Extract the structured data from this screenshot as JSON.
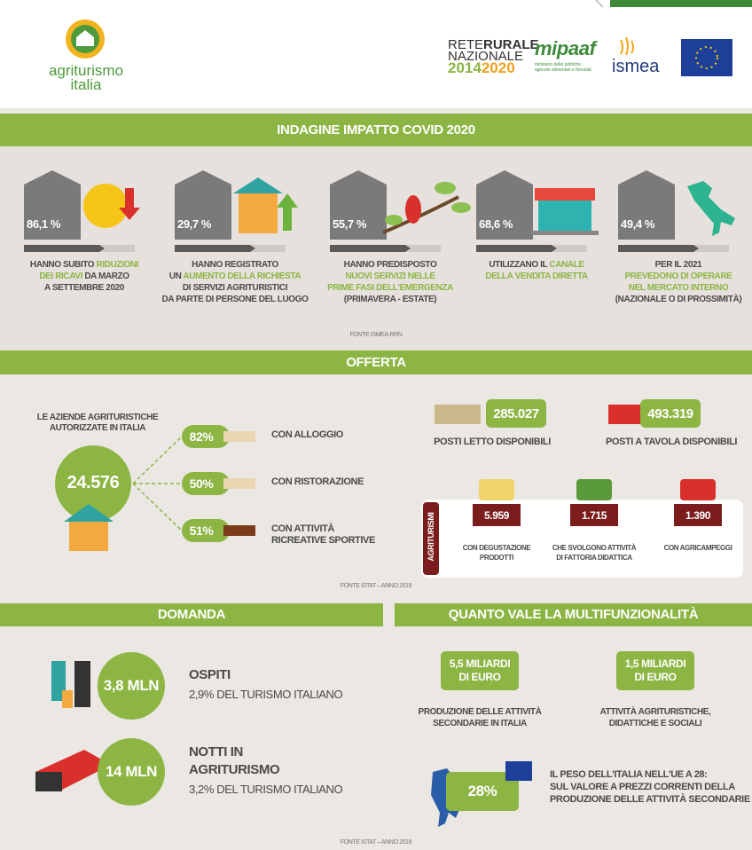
{
  "header": {
    "logo": [
      "agriturismo",
      "italia"
    ],
    "partners": {
      "rrn": [
        [
          {
            "text": "RETE"
          },
          {
            "text": "RURALE",
            "bold": true
          }
        ],
        [
          {
            "text": "NAZIONALE"
          }
        ],
        [
          {
            "text": "2014",
            "color": "#8bb545"
          },
          {
            "text": "2020",
            "color": "#f0a020"
          }
        ]
      ],
      "mipaaf": "mipaaf",
      "mipaaf_sub": [
        "ministero delle politiche",
        "agricole alimentari e forestali"
      ],
      "ismea": "ismea"
    }
  },
  "covid": {
    "title": "INDAGINE IMPATTO COVID 2020",
    "items": [
      {
        "value": "86,1 %",
        "text": [
          [
            {
              "text": "HANNO SUBITO "
            },
            {
              "text": "RIDUZIONI",
              "highlight": true
            }
          ],
          [
            {
              "text": "DEI RICAVI",
              "highlight": true
            },
            {
              "text": " DA MARZO"
            }
          ],
          [
            {
              "text": "A SETTEMBRE 2020"
            }
          ]
        ]
      },
      {
        "value": "29,7 %",
        "text": [
          [
            {
              "text": "HANNO REGISTRATO"
            }
          ],
          [
            {
              "text": "UN "
            },
            {
              "text": "AUMENTO DELLA RICHIESTA",
              "highlight": true
            }
          ],
          [
            {
              "text": "DI SERVIZI AGRITURISTICI"
            }
          ],
          [
            {
              "text": "DA PARTE DI PERSONE DEL LUOGO"
            }
          ]
        ]
      },
      {
        "value": "55,7 %",
        "text": [
          [
            {
              "text": "HANNO PREDISPOSTO"
            }
          ],
          [
            {
              "text": "NUOVI SERVIZI NELLE",
              "highlight": true
            }
          ],
          [
            {
              "text": "PRIME FASI DELL'EMERGENZA",
              "highlight": true
            }
          ],
          [
            {
              "text": "(PRIMAVERA - ESTATE)"
            }
          ]
        ]
      },
      {
        "value": "68,6 %",
        "text": [
          [
            {
              "text": "UTILIZZANO IL "
            },
            {
              "text": "CANALE",
              "highlight": true
            }
          ],
          [
            {
              "text": "DELLA VENDITA DIRETTA",
              "highlight": true
            }
          ]
        ]
      },
      {
        "value": "49,4 %",
        "text": [
          [
            {
              "text": "PER IL 2021"
            }
          ],
          [
            {
              "text": "PREVEDONO DI OPERARE",
              "highlight": true
            }
          ],
          [
            {
              "text": "NEL MERCATO INTERNO",
              "highlight": true
            }
          ],
          [
            {
              "text": "(NAZIONALE O DI PROSSIMITÀ)"
            }
          ]
        ]
      }
    ],
    "source": "FONTE ISMEA-RRN"
  },
  "offerta": {
    "title": "OFFERTA",
    "total_label": [
      "LE AZIENDE AGRITURISTICHE",
      "AUTORIZZATE IN ITALIA"
    ],
    "total": "24.576",
    "branches": [
      {
        "value": "82%",
        "label": [
          "CON ALLOGGIO"
        ]
      },
      {
        "value": "50%",
        "label": [
          "CON RISTORAZIONE"
        ]
      },
      {
        "value": "51%",
        "label": [
          "CON ATTIVITÀ",
          "RICREATIVE SPORTIVE"
        ]
      }
    ],
    "places": [
      {
        "value": "285.027",
        "label": "POSTI LETTO DISPONIBILI"
      },
      {
        "value": "493.319",
        "label": "POSTI A TAVOLA DISPONIBILI"
      }
    ],
    "agriturismi": {
      "label": "AGRITURISMI",
      "items": [
        {
          "value": "5.959",
          "label": [
            "CON DEGUSTAZIONE",
            "PRODOTTI"
          ]
        },
        {
          "value": "1.715",
          "label": [
            "CHE SVOLGONO ATTIVITÀ",
            "DI FATTORIA DIDATTICA"
          ]
        },
        {
          "value": "1.390",
          "label": [
            "CON AGRICAMPEGGI"
          ]
        }
      ]
    },
    "source": "FONTE ISTAT – ANNO 2019"
  },
  "domanda": {
    "title": "DOMANDA",
    "items": [
      {
        "value": "3,8 MLN",
        "label": [
          "OSPITI"
        ],
        "sub": "2,9% DEL TURISMO ITALIANO"
      },
      {
        "value": "14 MLN",
        "label": [
          "NOTTI IN",
          "AGRITURISMO"
        ],
        "sub": "3,2% DEL TURISMO ITALIANO"
      }
    ]
  },
  "multifunzionalita": {
    "title": "QUANTO VALE LA MULTIFUNZIONALITÀ",
    "items": [
      {
        "value": [
          "5,5 MILIARDI",
          "DI EURO"
        ],
        "label": [
          "PRODUZIONE DELLE ATTIVITÀ",
          "SECONDARIE IN ITALIA"
        ]
      },
      {
        "value": [
          "1,5 MILIARDI",
          "DI EURO"
        ],
        "label": [
          "ATTIVITÀ AGRITURISTICHE,",
          "DIDATTICHE E SOCIALI"
        ]
      }
    ],
    "share": {
      "value": "28%",
      "label": [
        "IL PESO DELL'ITALIA NELL'UE A 28:",
        "SUL VALORE A PREZZI CORRENTI DELLA",
        "PRODUZIONE  DELLE ATTIVITÀ SECONDARIE"
      ]
    },
    "source": "FONTE ISTAT – ANNO 2019"
  }
}
